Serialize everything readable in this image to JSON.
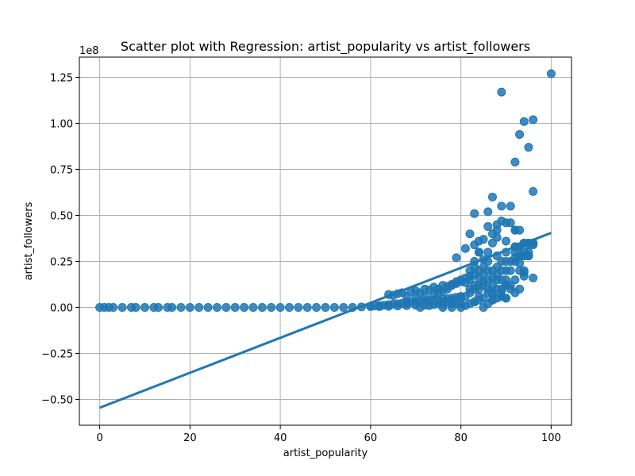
{
  "chart_data": {
    "type": "scatter",
    "title": "Scatter plot with Regression: artist_popularity vs artist_followers",
    "xlabel": "artist_popularity",
    "ylabel": "artist_followers",
    "y_offset_label": "1e8",
    "xlim": [
      -4.5,
      104.5
    ],
    "ylim": [
      -0.64,
      1.36
    ],
    "x_ticks": [
      0,
      20,
      40,
      60,
      80,
      100
    ],
    "x_tick_labels": [
      "0",
      "20",
      "40",
      "60",
      "80",
      "100"
    ],
    "y_ticks": [
      -0.5,
      -0.25,
      0.0,
      0.25,
      0.5,
      0.75,
      1.0,
      1.25
    ],
    "y_tick_labels": [
      "−0.50",
      "−0.25",
      "0.00",
      "0.25",
      "0.50",
      "0.75",
      "1.00",
      "1.25"
    ],
    "grid": true,
    "color": "#1f77b4",
    "points_x": [
      0,
      1,
      2,
      3,
      5,
      7,
      8,
      10,
      12,
      13,
      15,
      16,
      18,
      20,
      22,
      24,
      26,
      28,
      30,
      32,
      34,
      36,
      38,
      40,
      42,
      44,
      46,
      48,
      50,
      52,
      54,
      56,
      58,
      60,
      62,
      64,
      66,
      68,
      70,
      72,
      74,
      76,
      78,
      80,
      60,
      61,
      62,
      63,
      64,
      65,
      66,
      67,
      68,
      69,
      70,
      71,
      72,
      73,
      74,
      75,
      76,
      77,
      78,
      79,
      80,
      64,
      65,
      66,
      67,
      68,
      69,
      70,
      71,
      72,
      73,
      74,
      75,
      76,
      77,
      78,
      79,
      80,
      81,
      68,
      70,
      72,
      74,
      75,
      76,
      77,
      78,
      79,
      80,
      81,
      82,
      71,
      73,
      75,
      77,
      78,
      79,
      80,
      81,
      82,
      83,
      84,
      76,
      78,
      80,
      81,
      82,
      83,
      84,
      85,
      86,
      82,
      82,
      82,
      83,
      83,
      83,
      83,
      84,
      84,
      84,
      84,
      85,
      85,
      85,
      85,
      85,
      86,
      86,
      86,
      86,
      86,
      87,
      87,
      87,
      87,
      87,
      88,
      88,
      88,
      88,
      88,
      89,
      89,
      89,
      89,
      90,
      90,
      90,
      90,
      90,
      91,
      91,
      91,
      92,
      92,
      92,
      93,
      93,
      93,
      94,
      94,
      94,
      95,
      96,
      79,
      81,
      82,
      83,
      83,
      84,
      84,
      85,
      86,
      86,
      87,
      87,
      88,
      88,
      88,
      89,
      89,
      90,
      90,
      91,
      91,
      92,
      92,
      93,
      93,
      94,
      94,
      95,
      95,
      96,
      96,
      83,
      84,
      85,
      86,
      87,
      87,
      88,
      89,
      89,
      90,
      90,
      91,
      92,
      92,
      93,
      94,
      94,
      96,
      87,
      89,
      90,
      92,
      92,
      93,
      93,
      94,
      94,
      95,
      95,
      96,
      96,
      89,
      92,
      93,
      94,
      95,
      96,
      96,
      100
    ],
    "points_y": [
      0,
      0,
      0,
      0,
      0,
      0,
      0,
      0,
      0,
      0,
      0,
      0,
      0,
      0,
      0,
      0,
      0,
      0,
      0,
      0,
      0,
      0,
      0,
      0,
      0,
      0,
      0,
      0,
      0,
      0,
      0,
      0,
      0.003,
      0.005,
      0.005,
      0.006,
      0.008,
      0.01,
      0.012,
      0.012,
      0.015,
      0.015,
      0.02,
      0.02,
      0.005,
      0.008,
      0.01,
      0.012,
      0.015,
      0.018,
      0.02,
      0.022,
      0.025,
      0.028,
      0.03,
      0.032,
      0.035,
      0.038,
      0.04,
      0.042,
      0.045,
      0.048,
      0.05,
      0.055,
      0.06,
      0.07,
      0.065,
      0.075,
      0.08,
      0.06,
      0.085,
      0.09,
      0.08,
      0.1,
      0.095,
      0.11,
      0.1,
      0.12,
      0.115,
      0.125,
      0.13,
      0.14,
      0.135,
      0.03,
      0.05,
      0.06,
      0.07,
      0.08,
      0.09,
      0.1,
      0.12,
      0.14,
      0.15,
      0.16,
      0.17,
      0.0,
      0.01,
      0.02,
      0.03,
      0.04,
      0.02,
      0.05,
      0.06,
      0.08,
      0.1,
      0.12,
      0.0,
      0.0,
      0.0,
      0.01,
      0.02,
      0.03,
      0.04,
      0.0,
      0.02,
      0.1,
      0.15,
      0.2,
      0.12,
      0.18,
      0.22,
      0.25,
      0.1,
      0.16,
      0.2,
      0.3,
      0.12,
      0.14,
      0.18,
      0.22,
      0.26,
      0.1,
      0.15,
      0.2,
      0.25,
      0.3,
      0.08,
      0.12,
      0.16,
      0.2,
      0.35,
      0.1,
      0.15,
      0.18,
      0.22,
      0.28,
      0.1,
      0.15,
      0.2,
      0.25,
      0.12,
      0.15,
      0.2,
      0.25,
      0.3,
      0.12,
      0.2,
      0.25,
      0.15,
      0.25,
      0.3,
      0.2,
      0.28,
      0.33,
      0.2,
      0.28,
      0.35,
      0.3,
      0.35,
      0.27,
      0.32,
      0.4,
      0.51,
      0.34,
      0.36,
      0.3,
      0.37,
      0.52,
      0.44,
      0.6,
      0.4,
      0.38,
      0.45,
      0.42,
      0.55,
      0.47,
      0.46,
      0.36,
      0.55,
      0.46,
      0.42,
      0.33,
      0.42,
      0.33,
      0.3,
      0.28,
      0.35,
      0.28,
      0.35,
      0.34,
      0.03,
      0.06,
      0.05,
      0.08,
      0.07,
      0.04,
      0.05,
      0.09,
      0.06,
      0.05,
      0.12,
      0.1,
      0.08,
      0.27,
      0.1,
      0.19,
      0.17,
      0.16,
      0.04,
      0.06,
      0.05,
      0.33,
      0.42,
      0.24,
      0.28,
      0.28,
      0.35,
      0.34,
      0.28,
      0.35,
      0.35,
      1.17,
      0.79,
      0.94,
      1.01,
      0.87,
      1.02,
      0.63,
      1.27
    ],
    "regression": {
      "x0": 0,
      "y0": -0.545,
      "x1": 100,
      "y1": 0.405
    }
  }
}
